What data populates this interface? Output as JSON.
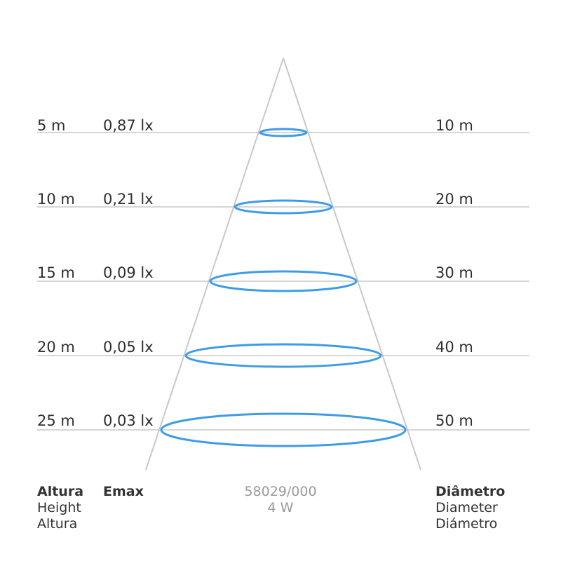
{
  "colors": {
    "cone": "#c8c8c8",
    "rule": "#c8c8c8",
    "ellipse": "#3d9be9",
    "text": "#2f2f2f",
    "muted": "#9a9a9a"
  },
  "rows": [
    {
      "height": "5 m",
      "emax": "0,87 lx",
      "diameter": "10 m"
    },
    {
      "height": "10 m",
      "emax": "0,21 lx",
      "diameter": "20 m"
    },
    {
      "height": "15 m",
      "emax": "0,09 lx",
      "diameter": "30 m"
    },
    {
      "height": "20 m",
      "emax": "0,05 lx",
      "diameter": "40 m"
    },
    {
      "height": "25 m",
      "emax": "0,03 lx",
      "diameter": "50 m"
    }
  ],
  "footer": {
    "height_labels": [
      "Altura",
      "Height",
      "Altura"
    ],
    "emax_label": "Emax",
    "product": [
      "58029/000",
      "4 W"
    ],
    "diameter_labels": [
      "Diâmetro",
      "Diameter",
      "Diámetro"
    ]
  }
}
